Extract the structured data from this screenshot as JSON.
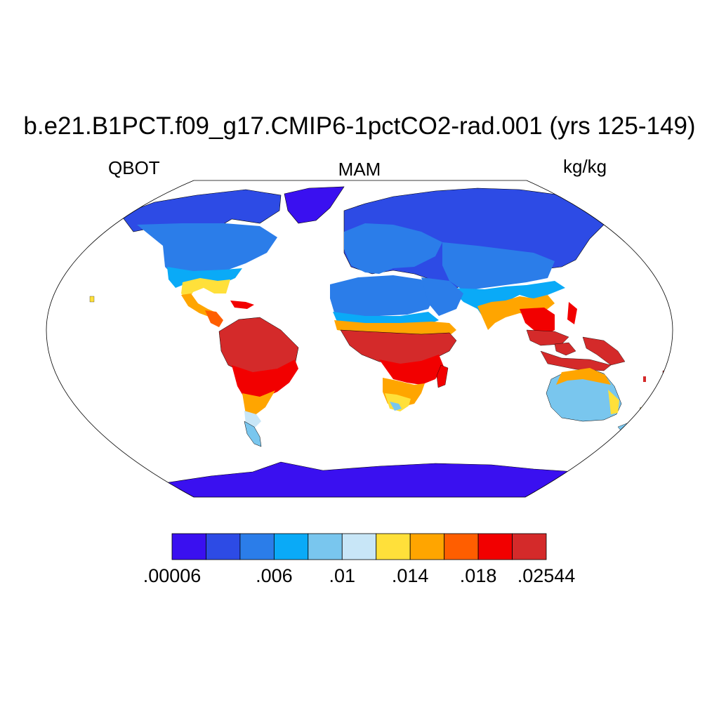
{
  "title": "b.e21.B1PCT.f09_g17.CMIP6-1pctCO2-rad.001 (yrs 125-149)",
  "variable": "QBOT",
  "season": "MAM",
  "units": "kg/kg",
  "colorbar": {
    "colors": [
      "#3a10f0",
      "#2d4be5",
      "#2b7de9",
      "#0aaaf7",
      "#79c6ee",
      "#c8e6f7",
      "#ffe03a",
      "#ffa500",
      "#ff5e00",
      "#f20000",
      "#d42a2a"
    ],
    "tick_labels": [
      {
        "text": ".00006",
        "boundary": 0
      },
      {
        "text": ".006",
        "boundary": 3
      },
      {
        "text": ".01",
        "boundary": 5
      },
      {
        "text": ".014",
        "boundary": 7
      },
      {
        "text": ".018",
        "boundary": 9
      },
      {
        "text": ".02544",
        "boundary": 11
      }
    ]
  }
}
